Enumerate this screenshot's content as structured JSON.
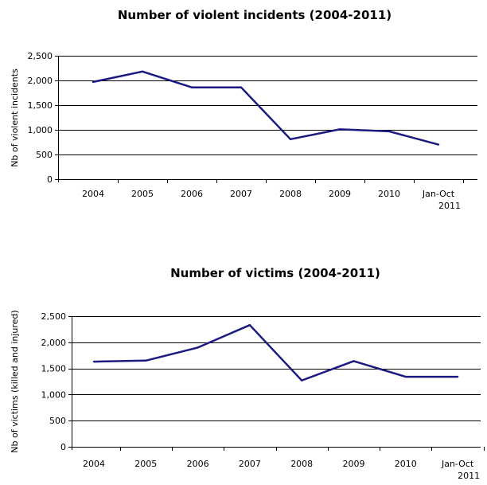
{
  "chart_data": [
    {
      "type": "line",
      "title": "Number of violent incidents (2004-2011)",
      "xlabel": "",
      "ylabel": "Nb of violent incidents",
      "categories": [
        "2004",
        "2005",
        "2006",
        "2007",
        "2008",
        "2009",
        "2010",
        "Jan-Oct 2011"
      ],
      "category_lines": [
        [
          "2004"
        ],
        [
          "2005"
        ],
        [
          "2006"
        ],
        [
          "2007"
        ],
        [
          "2008"
        ],
        [
          "2009"
        ],
        [
          "2010"
        ],
        [
          "Jan-Oct",
          "2011"
        ]
      ],
      "series": [
        {
          "values": [
            1970,
            2180,
            1860,
            1860,
            810,
            1010,
            970,
            700
          ],
          "color": "#1a1a80"
        }
      ],
      "ylim": [
        0,
        2500
      ],
      "yticks": [
        0,
        500,
        1000,
        1500,
        2000,
        2500
      ],
      "ytick_labels": [
        "0",
        "500",
        "1,000",
        "1,500",
        "2,000",
        "2,500"
      ],
      "grid": true,
      "legend": false
    },
    {
      "type": "line",
      "title": "Number of victims (2004-2011)",
      "xlabel": "",
      "ylabel": "Nb of victims (killed and injured)",
      "categories": [
        "2004",
        "2005",
        "2006",
        "2007",
        "2008",
        "2009",
        "2010",
        "Jan-Oct 2011"
      ],
      "category_lines": [
        [
          "2004"
        ],
        [
          "2005"
        ],
        [
          "2006"
        ],
        [
          "2007"
        ],
        [
          "2008"
        ],
        [
          "2009"
        ],
        [
          "2010"
        ],
        [
          "Jan-Oct",
          "2011"
        ]
      ],
      "series": [
        {
          "values": [
            1630,
            1650,
            1900,
            2330,
            1270,
            1640,
            1340,
            1340
          ],
          "color": "#1a1a80"
        }
      ],
      "ylim": [
        0,
        2500
      ],
      "yticks": [
        0,
        500,
        1000,
        1500,
        2000,
        2500
      ],
      "ytick_labels": [
        "0",
        "500",
        "1,000",
        "1,500",
        "2,000",
        "2,500"
      ],
      "grid": true,
      "legend": false
    }
  ]
}
